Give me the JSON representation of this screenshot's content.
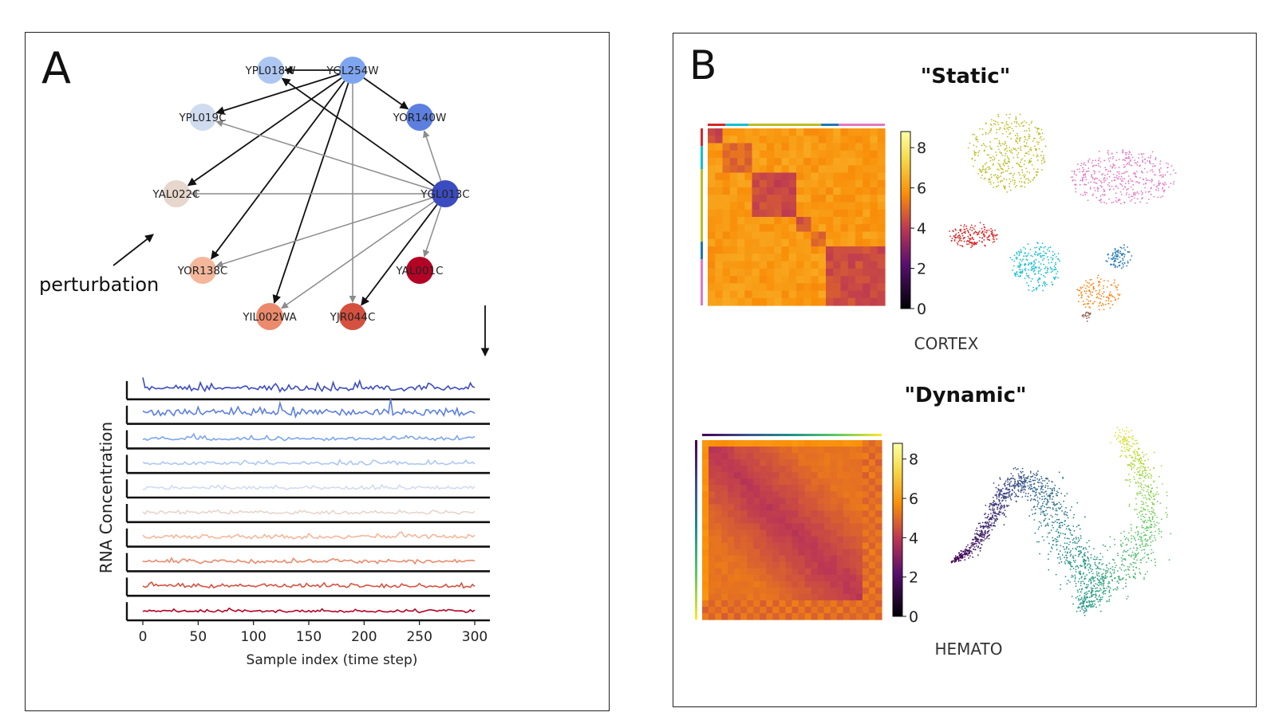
{
  "panel_a": {
    "label": "A",
    "perturbation_label": "perturbation",
    "network": {
      "nodes": [
        {
          "id": "YPL018W",
          "color": "#aec7f2"
        },
        {
          "id": "YGL254W",
          "color": "#7ea5ef"
        },
        {
          "id": "YPL019C",
          "color": "#cfdcf0"
        },
        {
          "id": "YOR140W",
          "color": "#5c7fe0"
        },
        {
          "id": "YAL022C",
          "color": "#e6d6cc"
        },
        {
          "id": "YGL013C",
          "color": "#3b4cc0"
        },
        {
          "id": "YOR138C",
          "color": "#f4b79b"
        },
        {
          "id": "YAL001C",
          "color": "#b40426"
        },
        {
          "id": "YIL002WA",
          "color": "#ec8a6c"
        },
        {
          "id": "YJR044C",
          "color": "#d5513f"
        }
      ],
      "edges": [
        {
          "from": "YGL254W",
          "to": "YPL018W",
          "kind": "activation"
        },
        {
          "from": "YGL254W",
          "to": "YPL019C",
          "kind": "activation"
        },
        {
          "from": "YGL254W",
          "to": "YOR140W",
          "kind": "activation"
        },
        {
          "from": "YGL254W",
          "to": "YAL022C",
          "kind": "activation"
        },
        {
          "from": "YGL254W",
          "to": "YOR138C",
          "kind": "activation"
        },
        {
          "from": "YGL254W",
          "to": "YIL002WA",
          "kind": "activation"
        },
        {
          "from": "YGL254W",
          "to": "YJR044C",
          "kind": "repression"
        },
        {
          "from": "YGL013C",
          "to": "YPL018W",
          "kind": "activation"
        },
        {
          "from": "YGL013C",
          "to": "YPL019C",
          "kind": "repression"
        },
        {
          "from": "YGL013C",
          "to": "YOR140W",
          "kind": "repression"
        },
        {
          "from": "YGL013C",
          "to": "YAL022C",
          "kind": "repression"
        },
        {
          "from": "YGL013C",
          "to": "YOR138C",
          "kind": "repression"
        },
        {
          "from": "YGL013C",
          "to": "YAL001C",
          "kind": "repression"
        },
        {
          "from": "YGL013C",
          "to": "YIL002WA",
          "kind": "repression"
        },
        {
          "from": "YGL013C",
          "to": "YJR044C",
          "kind": "activation"
        }
      ],
      "edge_colors": {
        "activation": "#111111",
        "repression": "#8c8c8c"
      }
    },
    "chart_data": {
      "type": "line",
      "title": "",
      "xlabel": "Sample index (time step)",
      "ylabel": "RNA Concentration",
      "xlim": [
        0,
        300
      ],
      "xticks": [
        0,
        50,
        100,
        150,
        200,
        250,
        300
      ],
      "series": [
        {
          "name": "YGL013C",
          "color": "#3b4cc0",
          "amplitude": 1.0
        },
        {
          "name": "YOR140W",
          "color": "#5c7fe0",
          "amplitude": 0.95
        },
        {
          "name": "YGL254W",
          "color": "#7ea5ef",
          "amplitude": 0.55
        },
        {
          "name": "YPL018W",
          "color": "#aec7f2",
          "amplitude": 0.5
        },
        {
          "name": "YPL019C",
          "color": "#cfdcf0",
          "amplitude": 0.45
        },
        {
          "name": "YAL022C",
          "color": "#e6d6cc",
          "amplitude": 0.45
        },
        {
          "name": "YOR138C",
          "color": "#f4b79b",
          "amplitude": 0.55
        },
        {
          "name": "YIL002WA",
          "color": "#ec8a6c",
          "amplitude": 0.5
        },
        {
          "name": "YJR044C",
          "color": "#d5513f",
          "amplitude": 0.5
        },
        {
          "name": "YAL001C",
          "color": "#b40426",
          "amplitude": 0.4
        }
      ]
    }
  },
  "panel_b": {
    "label": "B",
    "static": {
      "title": "\"Static\"",
      "dataset": "CORTEX",
      "colorbar_ticks": [
        "0",
        "2",
        "4",
        "6",
        "8"
      ],
      "clusters": [
        {
          "name": "olive",
          "color": "#bcbd22"
        },
        {
          "name": "pink",
          "color": "#e377c2"
        },
        {
          "name": "red",
          "color": "#d62728"
        },
        {
          "name": "cyan",
          "color": "#17becf"
        },
        {
          "name": "blue",
          "color": "#1f77b4"
        },
        {
          "name": "orange",
          "color": "#ff7f0e"
        },
        {
          "name": "brown",
          "color": "#8c564b"
        }
      ]
    },
    "dynamic": {
      "title": "\"Dynamic\"",
      "dataset": "HEMATO",
      "colorbar_ticks": [
        "0",
        "2",
        "4",
        "6",
        "8"
      ],
      "gradient": [
        "#440154",
        "#3b528b",
        "#21918c",
        "#5ec962",
        "#fde725"
      ]
    }
  }
}
